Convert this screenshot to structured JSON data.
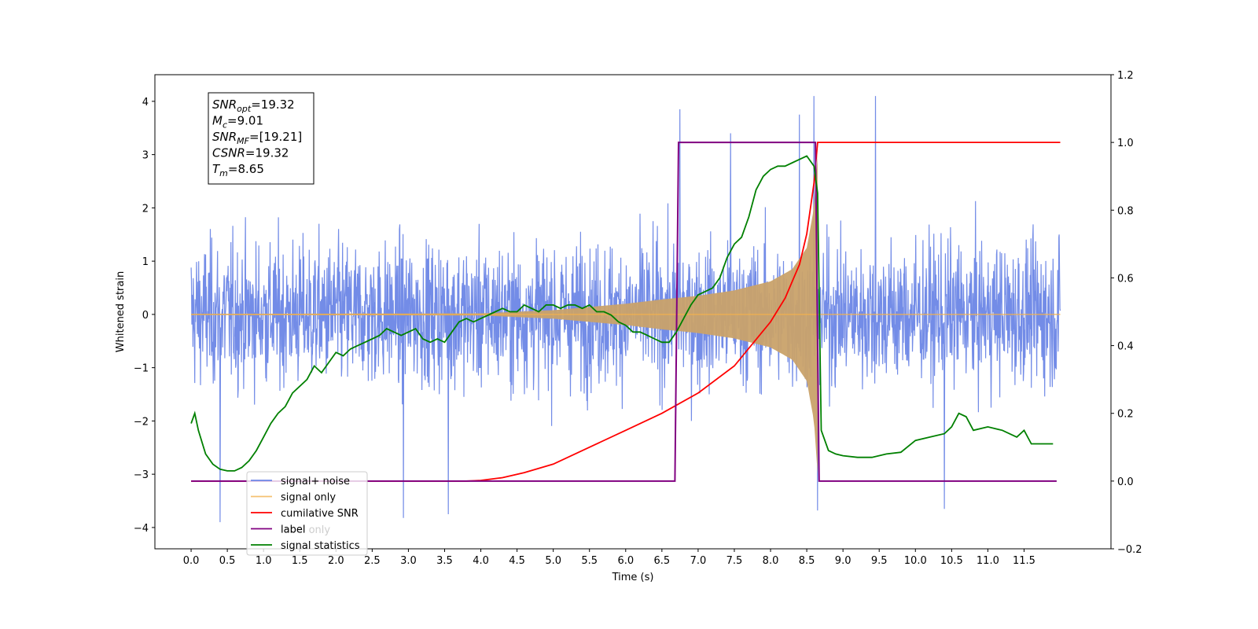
{
  "chart_data": {
    "type": "line",
    "xlabel": "Time (s)",
    "ylabel": "Whitened strain",
    "xlim": [
      -0.5,
      12.7
    ],
    "ylim": [
      -4.4,
      4.5
    ],
    "ylim_right": [
      -0.2,
      1.2
    ],
    "x_ticks": [
      0.0,
      0.5,
      1.0,
      1.5,
      2.0,
      2.5,
      3.0,
      3.5,
      4.0,
      4.5,
      5.0,
      5.5,
      6.0,
      6.5,
      7.0,
      7.5,
      8.0,
      8.5,
      9.0,
      9.5,
      10.0,
      10.5,
      11.0,
      11.5
    ],
    "x_tick_labels": [
      "0.0",
      "0.5",
      "1.0",
      "1.5",
      "2.0",
      "2.5",
      "3.0",
      "3.5",
      "4.0",
      "4.5",
      "5.0",
      "5.5",
      "6.0",
      "6.5",
      "7.0",
      "7.5",
      "8.0",
      "8.5",
      "9.0",
      "9.5",
      "10.0",
      "10.5",
      "11.0",
      "11.5"
    ],
    "y_ticks_left": [
      -4,
      -3,
      -2,
      -1,
      0,
      1,
      2,
      3,
      4
    ],
    "y_tick_labels_left": [
      "−4",
      "−3",
      "−2",
      "−1",
      "0",
      "1",
      "2",
      "3",
      "4"
    ],
    "y_ticks_right": [
      -0.2,
      0.0,
      0.2,
      0.4,
      0.6,
      0.8,
      1.0,
      1.2
    ],
    "y_tick_labels_right": [
      "−0.2",
      "0.0",
      "0.2",
      "0.4",
      "0.6",
      "0.8",
      "1.0",
      "1.2"
    ],
    "legend_position": "lower-left",
    "series": [
      {
        "name": "signal+ noise",
        "axis": "left",
        "color": "#6b86e6",
        "x_range": [
          0.0,
          12.0
        ],
        "typical_amplitude": 1.7,
        "peaks": [
          {
            "x": 6.75,
            "y": 3.85
          },
          {
            "x": 7.45,
            "y": 3.4
          },
          {
            "x": 8.4,
            "y": 3.75
          },
          {
            "x": 8.6,
            "y": 4.1
          },
          {
            "x": 9.45,
            "y": 4.1
          },
          {
            "x": 0.4,
            "y": -3.9
          },
          {
            "x": 2.93,
            "y": -3.82
          },
          {
            "x": 3.55,
            "y": -3.75
          },
          {
            "x": 8.65,
            "y": -3.68
          },
          {
            "x": 10.4,
            "y": -3.65
          }
        ]
      },
      {
        "name": "signal only",
        "axis": "left",
        "color": "#f2b24d",
        "envelope": {
          "x": [
            0.0,
            4.0,
            5.0,
            6.0,
            6.5,
            7.0,
            7.5,
            8.0,
            8.3,
            8.5,
            8.6,
            8.65,
            8.7
          ],
          "y": [
            0.01,
            0.02,
            0.08,
            0.2,
            0.28,
            0.35,
            0.45,
            0.62,
            0.85,
            1.25,
            2.0,
            3.0,
            0.0
          ]
        }
      },
      {
        "name": "cumilative SNR",
        "axis": "right",
        "color": "#ff0000",
        "x": [
          0.0,
          3.8,
          4.0,
          4.3,
          4.6,
          5.0,
          5.5,
          6.0,
          6.5,
          7.0,
          7.5,
          8.0,
          8.2,
          8.4,
          8.5,
          8.6,
          8.65,
          12.0
        ],
        "values": [
          0.0,
          0.0,
          0.002,
          0.01,
          0.025,
          0.05,
          0.1,
          0.15,
          0.2,
          0.26,
          0.34,
          0.47,
          0.54,
          0.64,
          0.73,
          0.88,
          1.0,
          1.0
        ]
      },
      {
        "name": "label",
        "axis": "right",
        "color": "#800080",
        "x": [
          0.0,
          6.68,
          6.73,
          8.62,
          8.67,
          11.95
        ],
        "values": [
          0.0,
          0.0,
          1.0,
          1.0,
          0.0,
          0.0
        ]
      },
      {
        "name": "signal statistics",
        "axis": "right",
        "color": "#008000",
        "x": [
          0.0,
          0.05,
          0.1,
          0.2,
          0.3,
          0.4,
          0.5,
          0.6,
          0.7,
          0.8,
          0.9,
          1.0,
          1.1,
          1.2,
          1.3,
          1.4,
          1.5,
          1.6,
          1.7,
          1.8,
          1.9,
          2.0,
          2.1,
          2.2,
          2.3,
          2.4,
          2.5,
          2.6,
          2.7,
          2.8,
          2.9,
          3.0,
          3.1,
          3.2,
          3.3,
          3.4,
          3.5,
          3.6,
          3.7,
          3.8,
          3.9,
          4.0,
          4.1,
          4.2,
          4.3,
          4.4,
          4.5,
          4.6,
          4.7,
          4.8,
          4.9,
          5.0,
          5.1,
          5.2,
          5.3,
          5.4,
          5.5,
          5.6,
          5.7,
          5.8,
          5.9,
          6.0,
          6.1,
          6.2,
          6.3,
          6.4,
          6.5,
          6.6,
          6.7,
          6.8,
          6.9,
          7.0,
          7.1,
          7.2,
          7.3,
          7.4,
          7.5,
          7.6,
          7.7,
          7.8,
          7.9,
          8.0,
          8.1,
          8.2,
          8.3,
          8.4,
          8.5,
          8.6,
          8.65,
          8.7,
          8.8,
          8.9,
          9.0,
          9.2,
          9.4,
          9.6,
          9.8,
          10.0,
          10.2,
          10.4,
          10.5,
          10.6,
          10.7,
          10.8,
          11.0,
          11.2,
          11.4,
          11.5,
          11.6,
          11.7,
          11.8,
          11.9
        ],
        "values": [
          0.17,
          0.2,
          0.15,
          0.08,
          0.05,
          0.035,
          0.03,
          0.03,
          0.04,
          0.06,
          0.09,
          0.13,
          0.17,
          0.2,
          0.22,
          0.26,
          0.28,
          0.3,
          0.34,
          0.32,
          0.35,
          0.38,
          0.37,
          0.39,
          0.4,
          0.41,
          0.42,
          0.43,
          0.45,
          0.44,
          0.43,
          0.44,
          0.45,
          0.42,
          0.41,
          0.42,
          0.41,
          0.44,
          0.47,
          0.48,
          0.47,
          0.48,
          0.49,
          0.5,
          0.51,
          0.5,
          0.5,
          0.52,
          0.51,
          0.5,
          0.52,
          0.52,
          0.51,
          0.52,
          0.52,
          0.51,
          0.52,
          0.5,
          0.5,
          0.49,
          0.47,
          0.46,
          0.44,
          0.44,
          0.43,
          0.42,
          0.41,
          0.41,
          0.44,
          0.48,
          0.52,
          0.55,
          0.56,
          0.57,
          0.6,
          0.66,
          0.7,
          0.72,
          0.78,
          0.86,
          0.9,
          0.92,
          0.93,
          0.93,
          0.94,
          0.95,
          0.96,
          0.93,
          0.85,
          0.15,
          0.09,
          0.08,
          0.075,
          0.07,
          0.07,
          0.08,
          0.085,
          0.12,
          0.13,
          0.14,
          0.16,
          0.2,
          0.19,
          0.15,
          0.16,
          0.15,
          0.13,
          0.15,
          0.11,
          0.11,
          0.11,
          0.11
        ]
      }
    ],
    "annotation_box": [
      {
        "base": "SNR",
        "sub": "opt",
        "rest": "=19.32"
      },
      {
        "base": "M",
        "sub": "c",
        "rest": "=9.01"
      },
      {
        "base": "SNR",
        "sub": "MF",
        "rest": "=[19.21]"
      },
      {
        "base": "CSNR",
        "sub": "",
        "rest": "=19.32"
      },
      {
        "base": "T",
        "sub": "m",
        "rest": "=8.65"
      }
    ],
    "overlapped_legend_text": "label only"
  }
}
